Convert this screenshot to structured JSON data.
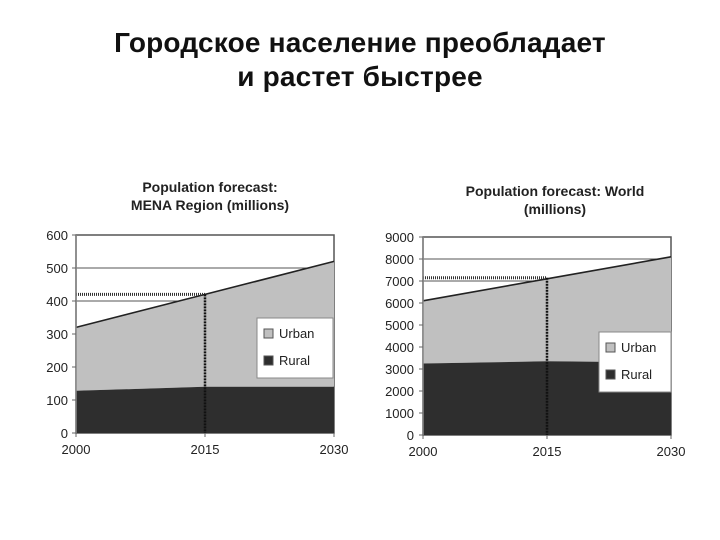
{
  "slide": {
    "title_line1": "Городское население преобладает",
    "title_line2": "и растет быстрее"
  },
  "colors": {
    "urban": "#c0c0c0",
    "rural": "#2e2e2e",
    "grid": "#555555",
    "background": "#ffffff"
  },
  "chart_data": [
    {
      "type": "area",
      "stacked": true,
      "title": "Population forecast: MENA Region (millions)",
      "title_lines": [
        "Population forecast:",
        "MENA Region (millions)"
      ],
      "xlabel": "",
      "ylabel": "",
      "x": [
        "2000",
        "2015",
        "2030"
      ],
      "series": [
        {
          "name": "Rural",
          "values": [
            128,
            140,
            140
          ]
        },
        {
          "name": "Urban",
          "values": [
            192,
            280,
            380
          ]
        }
      ],
      "totals": [
        320,
        420,
        520
      ],
      "ylim": [
        0,
        600
      ],
      "yticks": [
        "0",
        "100",
        "200",
        "300",
        "400",
        "500",
        "600"
      ],
      "grid": true,
      "legend": {
        "position": "right-inside",
        "entries": [
          "Urban",
          "Rural"
        ]
      },
      "annotations": [
        {
          "type": "dotted-guide",
          "x": "2015",
          "y": 420
        }
      ]
    },
    {
      "type": "area",
      "stacked": true,
      "title": "Population forecast: World (millions)",
      "title_lines": [
        "Population forecast: World",
        "(millions)"
      ],
      "xlabel": "",
      "ylabel": "",
      "x": [
        "2000",
        "2015",
        "2030"
      ],
      "series": [
        {
          "name": "Rural",
          "values": [
            3250,
            3350,
            3300
          ]
        },
        {
          "name": "Urban",
          "values": [
            2850,
            3750,
            4800
          ]
        }
      ],
      "totals": [
        6100,
        7100,
        8100
      ],
      "ylim": [
        0,
        9000
      ],
      "yticks": [
        "0",
        "1000",
        "2000",
        "3000",
        "4000",
        "5000",
        "6000",
        "7000",
        "8000",
        "9000"
      ],
      "grid": true,
      "legend": {
        "position": "right-inside",
        "entries": [
          "Urban",
          "Rural"
        ]
      },
      "annotations": [
        {
          "type": "dotted-guide",
          "x": "2015",
          "y": 7150
        }
      ]
    }
  ]
}
